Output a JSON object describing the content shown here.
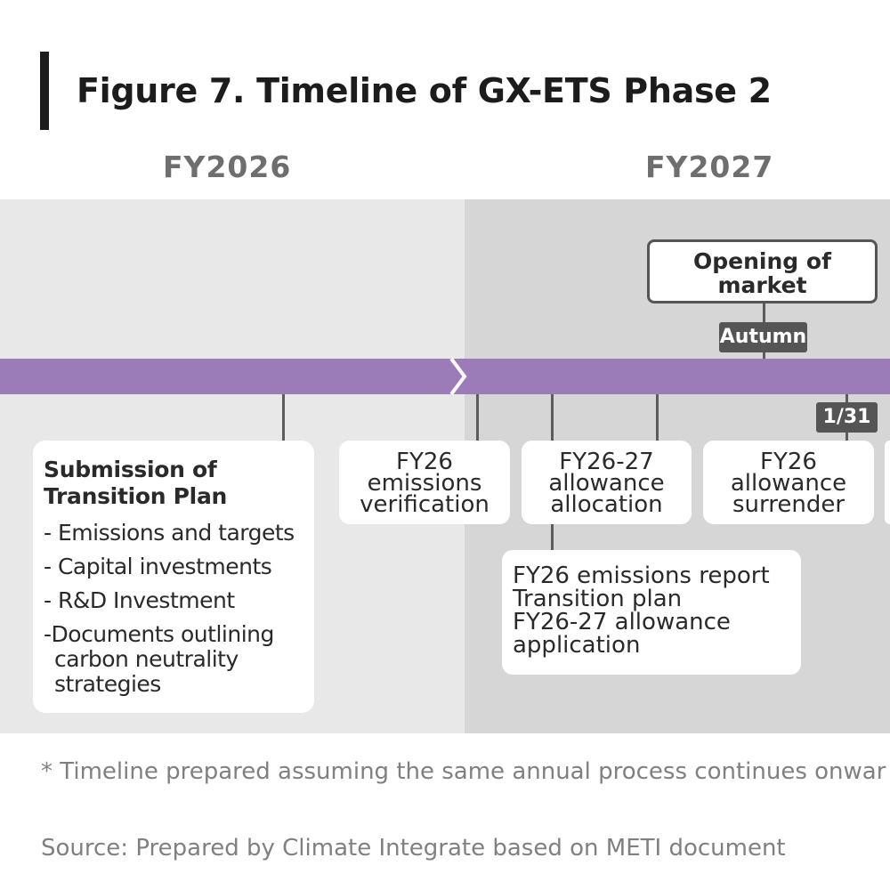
{
  "header": {
    "title": "Figure 7. Timeline of GX-ETS Phase 2"
  },
  "years": {
    "fy2026": "FY2026",
    "fy2027": "FY2027"
  },
  "colors": {
    "timeline_bar": "#9b7bb8",
    "fy2026_band": "#e8e8e8",
    "fy2027_band": "#d6d6d6",
    "tag_bg": "#555555"
  },
  "milestones": {
    "market_opening": {
      "label_line1": "Opening of",
      "label_line2": "market",
      "tag": "Autumn"
    },
    "surrender_deadline_tag": "1/31"
  },
  "cards": {
    "transition_plan": {
      "title_line1": "Submission of",
      "title_line2": "Transition Plan",
      "items": [
        "- Emissions and targets",
        "- Capital investments",
        "- R&D Investment",
        "-Documents outlining",
        "carbon neutrality",
        "strategies"
      ]
    },
    "verification": {
      "line1": "FY26",
      "line2": "emissions",
      "line3": "verification"
    },
    "allocation": {
      "line1": "FY26-27",
      "line2": "allowance",
      "line3": "allocation"
    },
    "surrender": {
      "line1": "FY26",
      "line2": "allowance",
      "line3": "surrender"
    },
    "report": {
      "lines": [
        "FY26 emissions report",
        "Transition plan",
        "FY26-27 allowance",
        "application"
      ]
    }
  },
  "footer": {
    "footnote": "* Timeline prepared assuming the same annual process continues onwar",
    "source": "Source: Prepared by Climate Integrate based on METI document"
  }
}
